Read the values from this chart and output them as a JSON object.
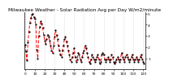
{
  "title": "Milwaukee Weather - Solar Radiation Avg per Day W/m2/minute",
  "y_values": [
    220,
    160,
    80,
    240,
    340,
    420,
    460,
    490,
    500,
    470,
    450,
    400,
    180,
    100,
    300,
    380,
    430,
    410,
    370,
    310,
    260,
    230,
    270,
    310,
    290,
    260,
    210,
    170,
    150,
    210,
    290,
    350,
    310,
    270,
    210,
    170,
    130,
    110,
    170,
    210,
    270,
    290,
    250,
    210,
    170,
    130,
    90,
    70,
    110,
    150,
    190,
    110,
    70,
    90,
    150,
    130,
    90,
    70,
    110,
    150,
    170,
    210,
    190,
    150,
    110,
    70,
    50,
    90,
    130,
    110,
    90,
    70,
    90,
    110,
    130,
    90,
    50,
    70,
    130,
    150,
    130,
    90,
    70,
    90,
    110,
    90,
    70,
    90,
    130,
    110,
    70,
    50,
    70,
    90,
    110,
    90,
    70,
    90,
    150,
    110,
    90,
    70,
    110,
    130,
    110,
    90,
    70,
    90,
    110,
    130,
    90,
    70,
    90,
    110,
    90,
    70,
    90,
    110,
    130,
    90,
    70,
    50
  ],
  "line_color": "#ff0000",
  "dot_color": "#000000",
  "grid_color": "#bbbbbb",
  "bg_color": "#ffffff",
  "plot_bg_color": "#ffffff",
  "ylim": [
    0,
    510
  ],
  "ytick_labels": [
    "1",
    "2",
    "3",
    "4",
    "5"
  ],
  "ytick_values": [
    100,
    200,
    300,
    400,
    500
  ],
  "num_points": 122,
  "title_fontsize": 4.2,
  "tick_fontsize": 3.2,
  "line_width": 0.7,
  "marker_size": 1.2
}
